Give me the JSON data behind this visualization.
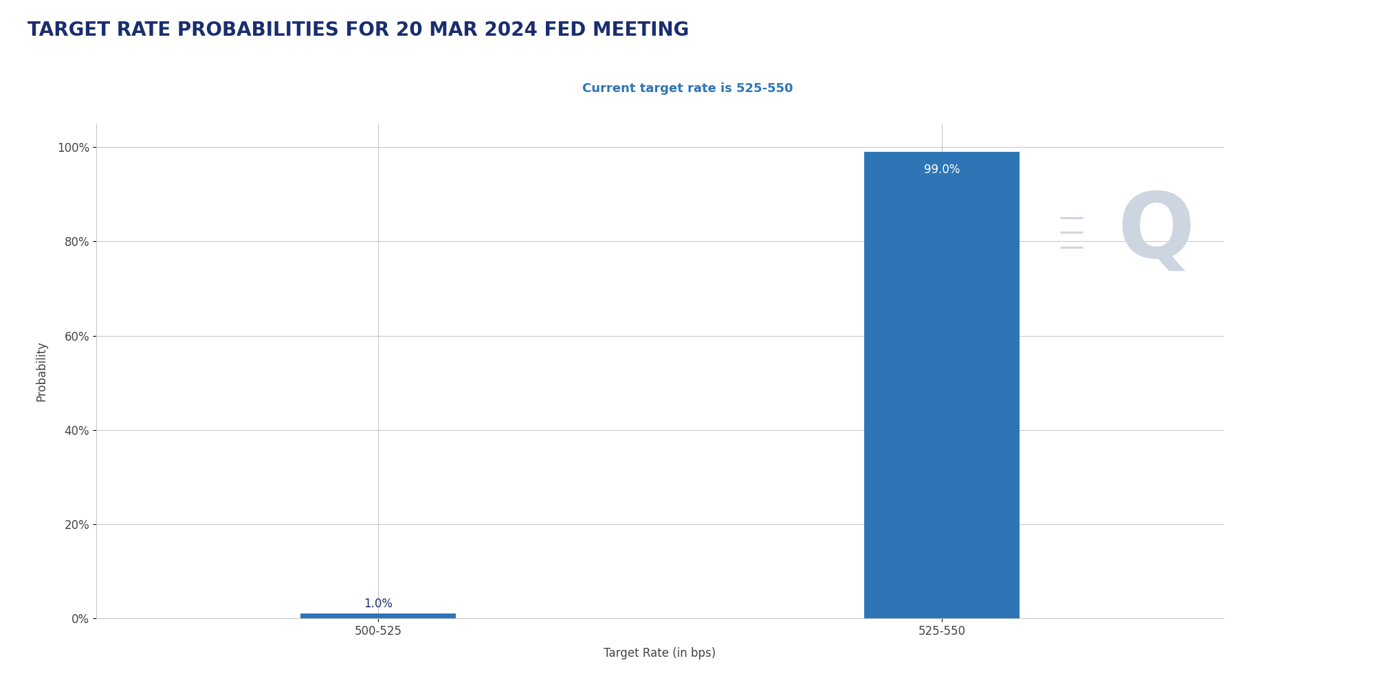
{
  "title": "TARGET RATE PROBABILITIES FOR 20 MAR 2024 FED MEETING",
  "subtitle": "Current target rate is 525-550",
  "categories": [
    "500-525",
    "525-550"
  ],
  "values": [
    1.0,
    99.0
  ],
  "bar_color": "#2e75b6",
  "title_color": "#1a2e6e",
  "subtitle_color": "#2e75b6",
  "ylabel": "Probability",
  "xlabel": "Target Rate (in bps)",
  "ylim": [
    0,
    105
  ],
  "yticks": [
    0,
    20,
    40,
    60,
    80,
    100
  ],
  "ytick_labels": [
    "0%",
    "20%",
    "40%",
    "60%",
    "80%",
    "100%"
  ],
  "background_color": "#ffffff",
  "grid_color": "#c8c8c8",
  "title_fontsize": 20,
  "subtitle_fontsize": 13,
  "axis_label_fontsize": 12,
  "tick_label_fontsize": 12,
  "bar_label_fontsize": 12,
  "watermark_text": "Q",
  "watermark_color": "#cdd5e0"
}
